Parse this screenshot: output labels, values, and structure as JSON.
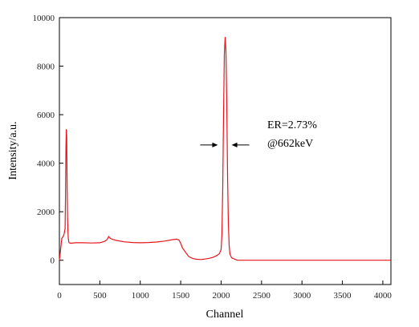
{
  "chart_data": {
    "type": "line",
    "title": "",
    "xlabel": "Channel",
    "ylabel": "Intensity/a.u.",
    "xlim": [
      0,
      4100
    ],
    "ylim": [
      -1000,
      10000
    ],
    "xticks": [
      0,
      500,
      1000,
      1500,
      2000,
      2500,
      3000,
      3500,
      4000
    ],
    "yticks": [
      0,
      2000,
      4000,
      6000,
      8000,
      10000
    ],
    "line_color": "#e8141c",
    "grid": false,
    "series": [
      {
        "x": [
          0,
          30,
          50,
          60,
          70,
          75,
          80,
          85,
          90,
          95,
          100,
          105,
          110,
          115,
          120,
          140,
          200,
          300,
          400,
          500,
          560,
          590,
          610,
          630,
          660,
          700,
          800,
          900,
          1000,
          1100,
          1200,
          1300,
          1400,
          1450,
          1480,
          1500,
          1520,
          1560,
          1600,
          1650,
          1700,
          1750,
          1800,
          1850,
          1900,
          1950,
          1980,
          2000,
          2010,
          2020,
          2030,
          2040,
          2050,
          2060,
          2070,
          2080,
          2090,
          2100,
          2110,
          2130,
          2200,
          2500,
          3000,
          3500,
          4100
        ],
        "y": [
          0,
          900,
          1000,
          1100,
          1300,
          2600,
          4500,
          5400,
          5100,
          3000,
          1800,
          1200,
          900,
          780,
          720,
          700,
          720,
          720,
          710,
          720,
          780,
          850,
          980,
          900,
          860,
          820,
          760,
          730,
          720,
          730,
          750,
          790,
          850,
          870,
          830,
          700,
          520,
          330,
          150,
          70,
          40,
          30,
          50,
          80,
          120,
          200,
          280,
          450,
          1100,
          3000,
          6000,
          8500,
          9200,
          8600,
          6500,
          3500,
          1500,
          600,
          250,
          100,
          0,
          0,
          0,
          0,
          0
        ]
      }
    ],
    "annotation": {
      "line1": "ER=2.73%",
      "line2": "@662keV",
      "arrow_left_x": 1960,
      "arrow_right_x": 2130,
      "arrow_y": 4750
    }
  }
}
